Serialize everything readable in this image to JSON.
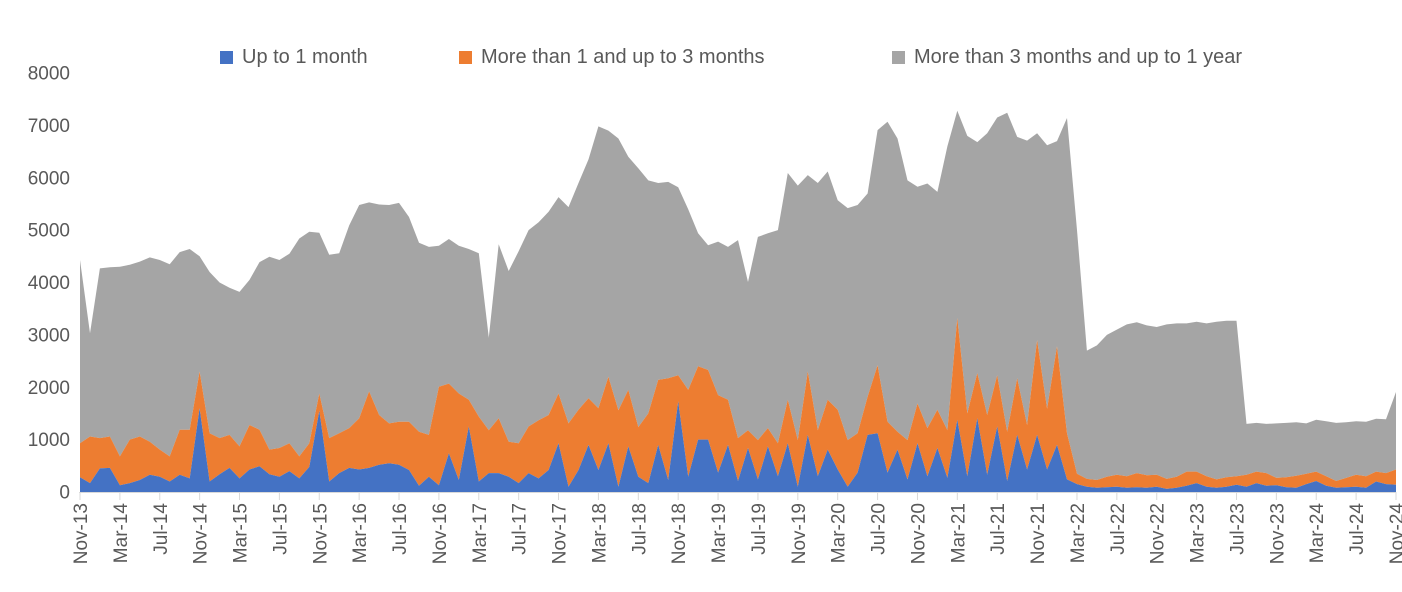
{
  "legend": [
    {
      "label": "Up to 1 month",
      "color": "#4472C4"
    },
    {
      "label": "More than 1 and up to 3 months",
      "color": "#ED7D31"
    },
    {
      "label": "More than 3 months and up to 1 year",
      "color": "#A5A5A5"
    }
  ],
  "axis": {
    "text_color": "#595959",
    "line_color": "#D9D9D9"
  },
  "chart_data": {
    "type": "area",
    "stacked": true,
    "title": "",
    "xlabel": "",
    "ylabel": "",
    "ylim": [
      0,
      8000
    ],
    "y_ticks": [
      0,
      1000,
      2000,
      3000,
      4000,
      5000,
      6000,
      7000,
      8000
    ],
    "grid": false,
    "legend_position": "top",
    "x_tick_every": 4,
    "x": [
      "Nov-13",
      "Dec-13",
      "Jan-14",
      "Feb-14",
      "Mar-14",
      "Apr-14",
      "May-14",
      "Jun-14",
      "Jul-14",
      "Aug-14",
      "Sep-14",
      "Oct-14",
      "Nov-14",
      "Dec-14",
      "Jan-15",
      "Feb-15",
      "Mar-15",
      "Apr-15",
      "May-15",
      "Jun-15",
      "Jul-15",
      "Aug-15",
      "Sep-15",
      "Oct-15",
      "Nov-15",
      "Dec-15",
      "Jan-16",
      "Feb-16",
      "Mar-16",
      "Apr-16",
      "May-16",
      "Jun-16",
      "Jul-16",
      "Aug-16",
      "Sep-16",
      "Oct-16",
      "Nov-16",
      "Dec-16",
      "Jan-17",
      "Feb-17",
      "Mar-17",
      "Apr-17",
      "May-17",
      "Jun-17",
      "Jul-17",
      "Aug-17",
      "Sep-17",
      "Oct-17",
      "Nov-17",
      "Dec-17",
      "Jan-18",
      "Feb-18",
      "Mar-18",
      "Apr-18",
      "May-18",
      "Jun-18",
      "Jul-18",
      "Aug-18",
      "Sep-18",
      "Oct-18",
      "Nov-18",
      "Dec-18",
      "Jan-19",
      "Feb-19",
      "Mar-19",
      "Apr-19",
      "May-19",
      "Jun-19",
      "Jul-19",
      "Aug-19",
      "Sep-19",
      "Oct-19",
      "Nov-19",
      "Dec-19",
      "Jan-20",
      "Feb-20",
      "Mar-20",
      "Apr-20",
      "May-20",
      "Jun-20",
      "Jul-20",
      "Aug-20",
      "Sep-20",
      "Oct-20",
      "Nov-20",
      "Dec-20",
      "Jan-21",
      "Feb-21",
      "Mar-21",
      "Apr-21",
      "May-21",
      "Jun-21",
      "Jul-21",
      "Aug-21",
      "Sep-21",
      "Oct-21",
      "Nov-21",
      "Dec-21",
      "Jan-22",
      "Feb-22",
      "Mar-22",
      "Apr-22",
      "May-22",
      "Jun-22",
      "Jul-22",
      "Aug-22",
      "Sep-22",
      "Oct-22",
      "Nov-22",
      "Dec-22",
      "Jan-23",
      "Feb-23",
      "Mar-23",
      "Apr-23",
      "May-23",
      "Jun-23",
      "Jul-23",
      "Aug-23",
      "Sep-23",
      "Oct-23",
      "Nov-23",
      "Dec-23",
      "Jan-24",
      "Feb-24",
      "Mar-24",
      "Apr-24",
      "May-24",
      "Jun-24",
      "Jul-24",
      "Aug-24",
      "Sep-24",
      "Oct-24",
      "Nov-24"
    ],
    "series": [
      {
        "name": "Up to 1 month",
        "color": "#4472C4",
        "values": [
          280,
          170,
          450,
          460,
          130,
          170,
          230,
          330,
          290,
          200,
          330,
          260,
          1600,
          200,
          340,
          460,
          260,
          430,
          490,
          340,
          290,
          400,
          260,
          480,
          1550,
          200,
          360,
          460,
          430,
          460,
          520,
          550,
          520,
          420,
          120,
          290,
          130,
          740,
          230,
          1250,
          200,
          360,
          360,
          290,
          170,
          360,
          260,
          420,
          930,
          100,
          420,
          900,
          420,
          930,
          100,
          870,
          290,
          170,
          900,
          230,
          1730,
          290,
          1000,
          1000,
          370,
          900,
          210,
          840,
          240,
          870,
          300,
          930,
          100,
          1090,
          300,
          810,
          430,
          100,
          370,
          1090,
          1120,
          370,
          810,
          240,
          930,
          300,
          840,
          270,
          1380,
          300,
          1410,
          330,
          1250,
          210,
          1090,
          430,
          1090,
          430,
          900,
          240,
          150,
          100,
          80,
          90,
          100,
          80,
          90,
          80,
          100,
          60,
          80,
          120,
          170,
          100,
          80,
          100,
          140,
          100,
          170,
          120,
          130,
          90,
          80,
          150,
          210,
          120,
          80,
          90,
          100,
          80,
          200,
          150,
          140
        ]
      },
      {
        "name": "More than 1 and up to 3 months",
        "color": "#ED7D31",
        "values": [
          650,
          890,
          580,
          600,
          550,
          830,
          830,
          630,
          520,
          480,
          860,
          930,
          700,
          920,
          690,
          630,
          610,
          850,
          700,
          470,
          550,
          530,
          420,
          450,
          330,
          830,
          760,
          760,
          980,
          1460,
          950,
          760,
          820,
          920,
          1030,
          800,
          1880,
          1330,
          1650,
          510,
          1240,
          820,
          1050,
          670,
          760,
          890,
          1110,
          1050,
          950,
          1210,
          1150,
          890,
          1180,
          1270,
          1460,
          1080,
          950,
          1330,
          1240,
          1940,
          500,
          1660,
          1400,
          1330,
          1480,
          860,
          820,
          340,
          750,
          350,
          630,
          830,
          890,
          1210,
          880,
          950,
          1140,
          890,
          750,
          730,
          1300,
          970,
          340,
          750,
          760,
          920,
          730,
          910,
          1940,
          1200,
          860,
          1140,
          980,
          940,
          1080,
          850,
          1810,
          1160,
          1880,
          880,
          200,
          150,
          150,
          200,
          230,
          220,
          270,
          240,
          230,
          190,
          210,
          270,
          220,
          200,
          160,
          180,
          160,
          230,
          220,
          240,
          140,
          190,
          230,
          200,
          180,
          180,
          130,
          180,
          230,
          220,
          190,
          210,
          290
        ]
      },
      {
        "name": "More than 3 months and up to 1 year",
        "color": "#A5A5A5",
        "values": [
          3500,
          1970,
          3240,
          3230,
          3620,
          3340,
          3340,
          3520,
          3620,
          3670,
          3390,
          3450,
          2200,
          3080,
          2970,
          2810,
          2950,
          2770,
          3200,
          3680,
          3590,
          3620,
          4160,
          4040,
          3070,
          3500,
          3440,
          3870,
          4070,
          3610,
          4020,
          4170,
          4180,
          3910,
          3610,
          3590,
          2690,
          2760,
          2820,
          2880,
          3120,
          1770,
          3320,
          3260,
          3670,
          3750,
          3780,
          3880,
          3750,
          4130,
          4330,
          4560,
          5380,
          4700,
          5190,
          4450,
          4940,
          4450,
          3760,
          3750,
          3590,
          3450,
          2540,
          2380,
          2930,
          2920,
          3780,
          2830,
          3880,
          3720,
          4070,
          4330,
          4860,
          3750,
          4720,
          4360,
          4000,
          4430,
          4360,
          3880,
          4490,
          5730,
          5600,
          4960,
          4140,
          4670,
          4160,
          5420,
          3960,
          5300,
          4410,
          5380,
          4920,
          6090,
          4610,
          5430,
          3950,
          5030,
          3920,
          6020,
          4650,
          2450,
          2570,
          2710,
          2770,
          2900,
          2880,
          2860,
          2820,
          2950,
          2930,
          2830,
          2860,
          2920,
          3010,
          2990,
          2970,
          970,
          930,
          940,
          1040,
          1040,
          1020,
          960,
          990,
          1050,
          1110,
          1060,
          1020,
          1040,
          1010,
          1030,
          1480
        ]
      }
    ]
  }
}
